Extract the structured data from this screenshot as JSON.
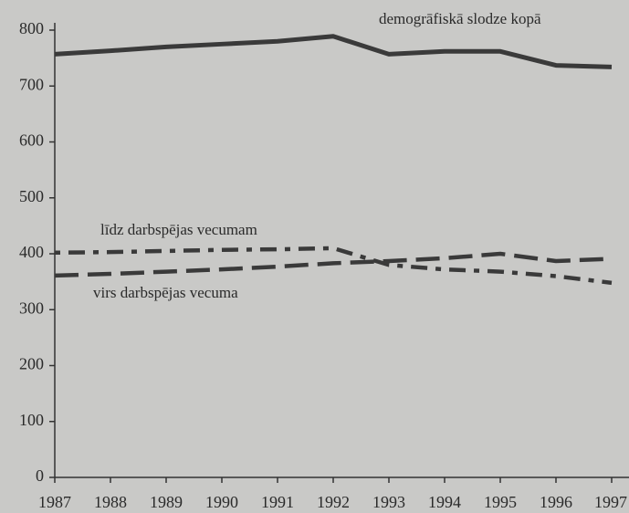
{
  "chart_data": {
    "type": "line",
    "x": [
      1987,
      1988,
      1989,
      1990,
      1991,
      1992,
      1993,
      1994,
      1995,
      1996,
      1997
    ],
    "xlim": [
      1987,
      1997
    ],
    "xticks": [
      1987,
      1988,
      1989,
      1990,
      1991,
      1992,
      1993,
      1994,
      1995,
      1996,
      1997
    ],
    "ylim": [
      0,
      800
    ],
    "yticks": [
      0,
      100,
      200,
      300,
      400,
      500,
      600,
      700,
      800
    ],
    "series": [
      {
        "name": "demogrāfiskā slodze kopā",
        "color": "#3a3a3a",
        "style": "solid",
        "values": [
          757,
          763,
          770,
          775,
          780,
          789,
          757,
          762,
          762,
          737,
          734
        ]
      },
      {
        "name": "līdz darbspējas vecumam",
        "color": "#3a3a3a",
        "style": "dotted",
        "values": [
          402,
          403,
          405,
          407,
          408,
          410,
          380,
          372,
          368,
          360,
          348
        ]
      },
      {
        "name": "virs darbspējas vecuma",
        "color": "#3a3a3a",
        "style": "dashed",
        "values": [
          361,
          364,
          368,
          372,
          377,
          383,
          387,
          392,
          400,
          387,
          391
        ]
      }
    ]
  }
}
